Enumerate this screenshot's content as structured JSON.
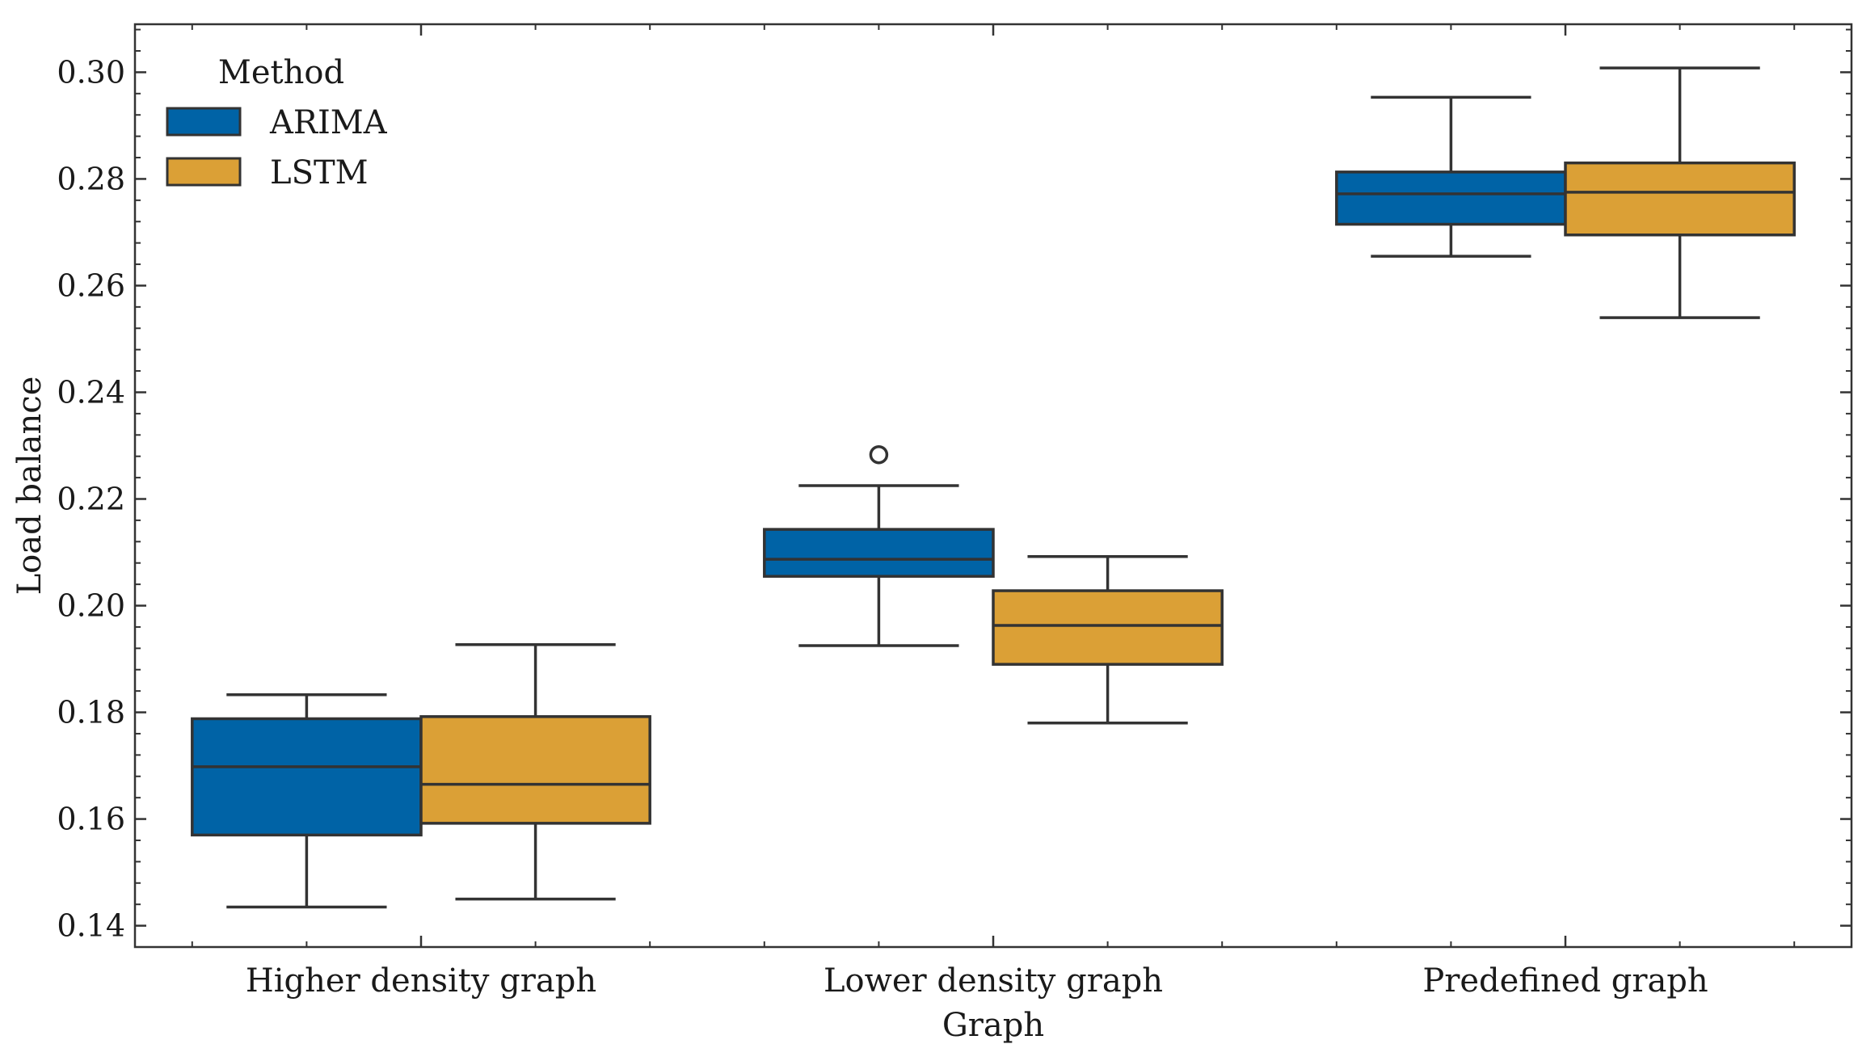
{
  "chart_data": {
    "type": "box",
    "title": "",
    "xlabel": "Graph",
    "ylabel": "Load balance",
    "ylim": [
      0.136,
      0.309
    ],
    "yticks": [
      0.14,
      0.16,
      0.18,
      0.2,
      0.22,
      0.24,
      0.26,
      0.28,
      0.3
    ],
    "ytick_labels": [
      "0.14",
      "0.16",
      "0.18",
      "0.20",
      "0.22",
      "0.24",
      "0.26",
      "0.28",
      "0.30"
    ],
    "categories": [
      "Higher density graph",
      "Lower density graph",
      "Predefined graph"
    ],
    "legend": {
      "title": "Method",
      "location": "top-left"
    },
    "series": [
      {
        "name": "ARIMA",
        "color": "#0063a6",
        "boxes": [
          {
            "whisker_low": 0.1435,
            "q1": 0.157,
            "median": 0.1698,
            "q3": 0.1788,
            "whisker_high": 0.1833,
            "outliers": []
          },
          {
            "whisker_low": 0.1925,
            "q1": 0.2055,
            "median": 0.2087,
            "q3": 0.2143,
            "whisker_high": 0.2225,
            "outliers": [
              0.2283
            ]
          },
          {
            "whisker_low": 0.2655,
            "q1": 0.2715,
            "median": 0.2772,
            "q3": 0.2813,
            "whisker_high": 0.2953,
            "outliers": []
          }
        ]
      },
      {
        "name": "LSTM",
        "color": "#dba036",
        "boxes": [
          {
            "whisker_low": 0.145,
            "q1": 0.1592,
            "median": 0.1665,
            "q3": 0.1792,
            "whisker_high": 0.1927,
            "outliers": []
          },
          {
            "whisker_low": 0.178,
            "q1": 0.189,
            "median": 0.1963,
            "q3": 0.2028,
            "whisker_high": 0.2092,
            "outliers": []
          },
          {
            "whisker_low": 0.254,
            "q1": 0.2695,
            "median": 0.2775,
            "q3": 0.283,
            "whisker_high": 0.3008,
            "outliers": []
          }
        ]
      }
    ]
  }
}
